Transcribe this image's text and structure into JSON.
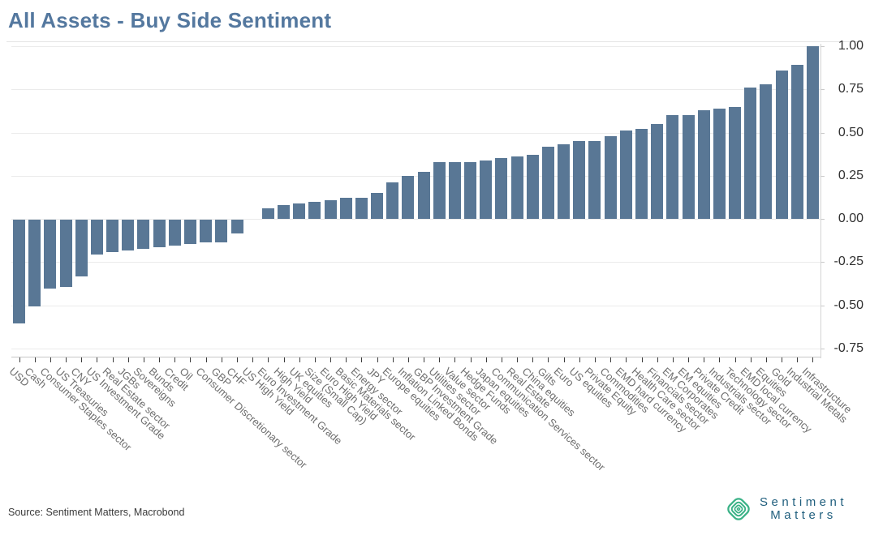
{
  "title": "All Assets - Buy Side Sentiment",
  "source": "Source: Sentiment Matters, Macrobond",
  "logo": {
    "line1": "Sentiment",
    "line2": "Matters",
    "icon": "concentric-diamond-icon",
    "icon_color": "#3bb287",
    "text_color": "#1f5e7d"
  },
  "colors": {
    "title": "#54789f",
    "bar": "#597795",
    "gridline": "#ebebeb",
    "axis_line": "#c8c8c8",
    "x_tick": "#3c3c3c",
    "y_tick_label": "#303030",
    "x_tick_label": "#6e6e6e",
    "source_text": "#3a3a3a"
  },
  "chart_data": {
    "type": "bar",
    "title": "All Assets - Buy Side Sentiment",
    "xlabel": "",
    "ylabel": "",
    "ylim": [
      -0.75,
      1.0
    ],
    "yticks": [
      1.0,
      0.75,
      0.5,
      0.25,
      0.0,
      -0.25,
      -0.5,
      -0.75
    ],
    "ytick_labels": [
      "1.00",
      "0.75",
      "0.50",
      "0.25",
      "0.00",
      "-0.25",
      "-0.50",
      "-0.75"
    ],
    "grid": true,
    "legend_position": "none",
    "bar_color": "#597795",
    "categories": [
      "USD",
      "Cash",
      "Consumer Staples sector",
      "US Treasuries",
      "CNY",
      "US Investment Grade",
      "Real Estate sector",
      "JGBs",
      "Sovereigns",
      "Bunds",
      "Credit",
      "Oil",
      "Consumer Discretionary sector",
      "GBP",
      "CHF",
      "US High Yield",
      "Euro Investment Grade",
      "High Yield",
      "UK equities",
      "Size (Small Cap)",
      "Euro High Yield",
      "Basic Materials sector",
      "Energy sector",
      "JPY",
      "Europe equities",
      "Inflation Linked Bonds",
      "GBP Investment Grade",
      "Utilities sector",
      "Value sector",
      "Hedge Funds",
      "Japan equities",
      "Communication Services sector",
      "Real Estate",
      "China equities",
      "Gilts",
      "Euro",
      "US equities",
      "Private Equity",
      "Commodities",
      "EMD hard currency",
      "Health Care sector",
      "Financials sector",
      "EM Corporates",
      "EM equities",
      "Private Credit",
      "Industrials sector",
      "Technology sector",
      "EMD local currency",
      "Equities",
      "Gold",
      "Industrial Metals",
      "Infrastructure"
    ],
    "values": [
      -0.6,
      -0.5,
      -0.4,
      -0.39,
      -0.33,
      -0.2,
      -0.19,
      -0.18,
      -0.17,
      -0.16,
      -0.15,
      -0.14,
      -0.13,
      -0.13,
      -0.08,
      0.0,
      0.06,
      0.08,
      0.09,
      0.1,
      0.11,
      0.12,
      0.12,
      0.15,
      0.21,
      0.25,
      0.27,
      0.33,
      0.33,
      0.33,
      0.34,
      0.35,
      0.36,
      0.37,
      0.42,
      0.43,
      0.45,
      0.45,
      0.48,
      0.51,
      0.52,
      0.55,
      0.6,
      0.6,
      0.63,
      0.64,
      0.65,
      0.76,
      0.78,
      0.86,
      0.89,
      1.0
    ]
  }
}
